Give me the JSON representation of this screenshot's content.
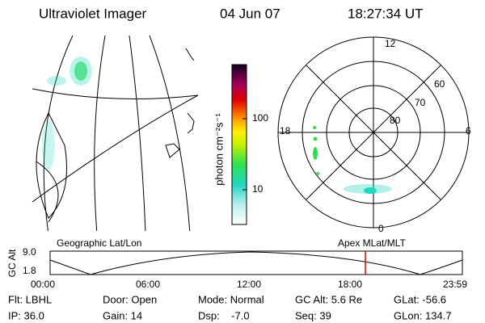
{
  "header": {
    "title": "Ultraviolet Imager",
    "date": "04 Jun 07",
    "time": "18:27:34 UT"
  },
  "colorbar": {
    "label": "photon cm⁻²s⁻¹",
    "ticks": [
      "100",
      "10"
    ]
  },
  "polar": {
    "mlt_labels": [
      "12",
      "18",
      "6",
      "0"
    ],
    "lat_labels": [
      "60",
      "70",
      "80"
    ]
  },
  "timeline": {
    "left_title": "Geographic Lat/Lon",
    "right_title": "Apex MLat/MLT",
    "axis_label": "GC Alt",
    "y_labels": [
      "9.0",
      "1.8"
    ],
    "time_labels": [
      "00:00",
      "06:00",
      "12:00",
      "18:00",
      "23:59"
    ]
  },
  "footer": {
    "rows": [
      [
        "Flt: LBHL",
        "Door: Open",
        "Mode: Normal",
        "GC Alt: 5.6 Re",
        "GLat: -56.6"
      ],
      [
        "IP: 36.0",
        "Gain: 14",
        "Dsp:    -7.0",
        "Seq: 39",
        "GLon: 134.7"
      ]
    ]
  }
}
